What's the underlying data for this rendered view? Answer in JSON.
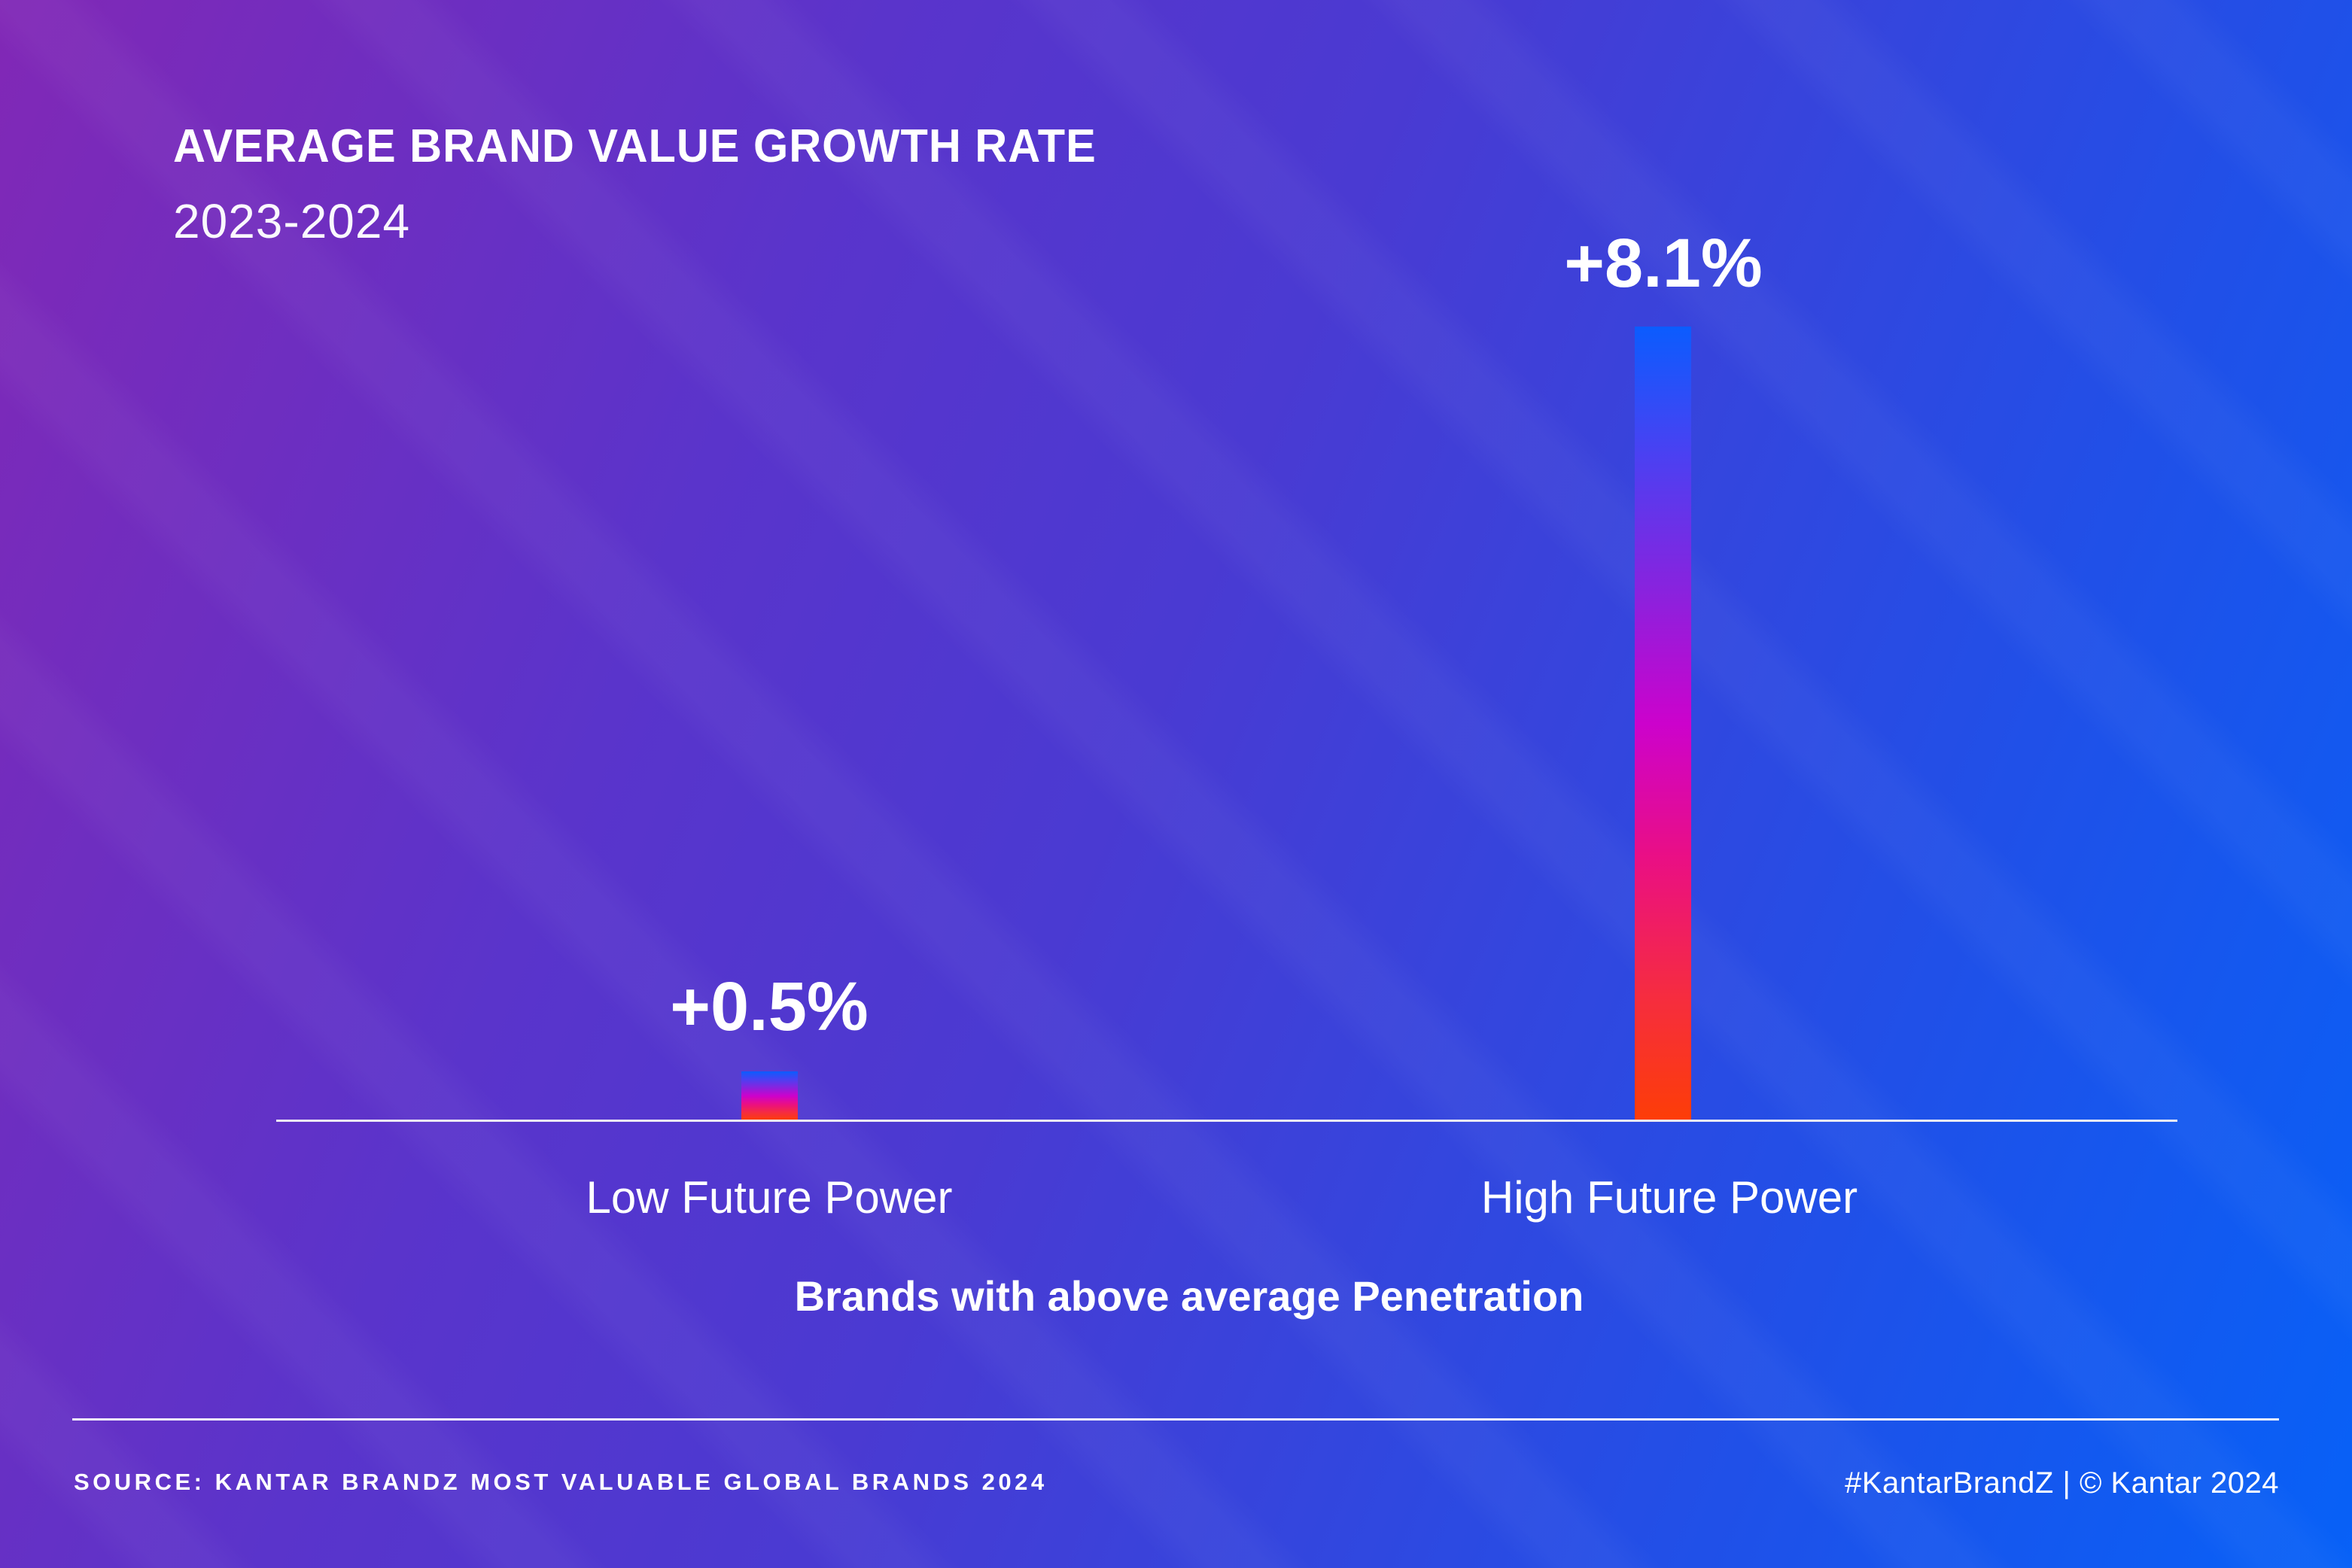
{
  "header": {
    "title": "AVERAGE BRAND VALUE GROWTH RATE",
    "subtitle": "2023-2024"
  },
  "chart_data": {
    "type": "bar",
    "title": "AVERAGE BRAND VALUE GROWTH RATE",
    "subtitle": "2023-2024",
    "categories": [
      "Low Future Power",
      "High Future Power"
    ],
    "values": [
      0.5,
      8.1
    ],
    "value_labels": [
      "+0.5%",
      "+8.1%"
    ],
    "xlabel": "Brands with above average Penetration",
    "ylabel": "",
    "ylim": [
      0,
      8.5
    ],
    "grid": false,
    "legend": false,
    "bar_gradient_top_to_bottom": [
      "#0B5CFE",
      "#8C21DD",
      "#CC02CC",
      "#EA0F84",
      "#FD3D07"
    ],
    "background_gradient": [
      "#8128B6",
      "#4A3AD2",
      "#0761F7"
    ],
    "axis_line_color": "#EDEAF4",
    "text_color": "#FFFFFF"
  },
  "footer": {
    "source": "SOURCE: KANTAR BRANDZ MOST VALUABLE GLOBAL BRANDS 2024",
    "credit": "#KantarBrandZ | © Kantar 2024"
  }
}
